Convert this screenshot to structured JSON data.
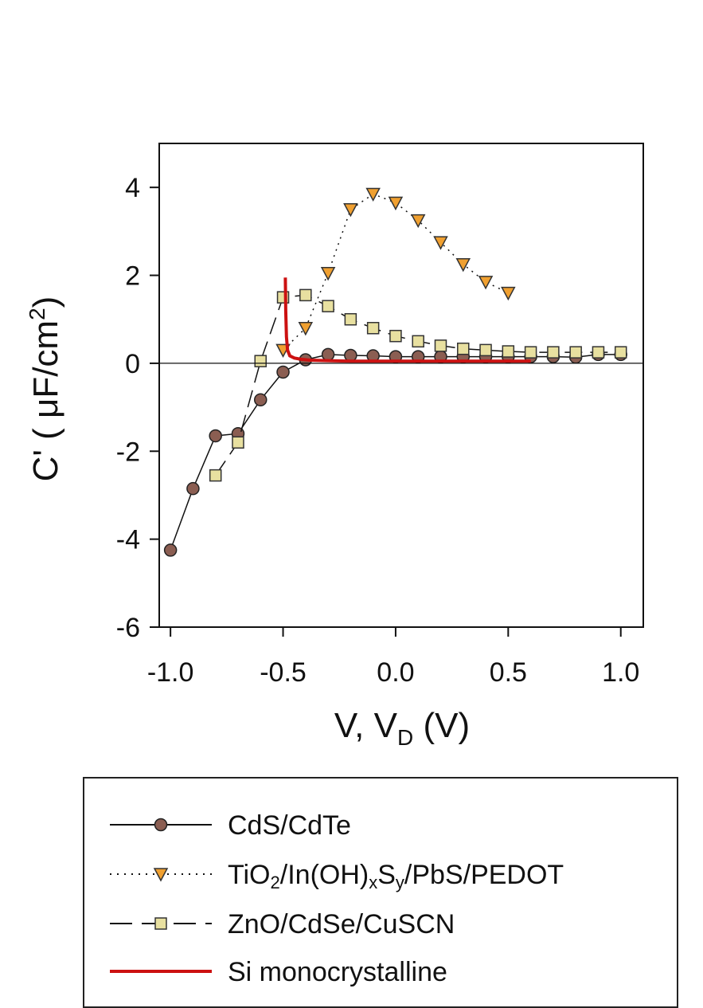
{
  "chart_data": {
    "type": "line",
    "xlabel": "V, V",
    "xlabel_sub": "D",
    "xlabel_unit": " (V)",
    "ylabel": "C' ( μF/cm",
    "ylabel_sup": "2",
    "ylabel_end": ")",
    "xlim": [
      -1.05,
      1.1
    ],
    "ylim": [
      -6,
      5
    ],
    "xticks": [
      -1.0,
      -0.5,
      0.0,
      0.5,
      1.0
    ],
    "xtick_labels": [
      "-1.0",
      "-0.5",
      "0.0",
      "0.5",
      "1.0"
    ],
    "yticks": [
      -6,
      -4,
      -2,
      0,
      2,
      4
    ],
    "ytick_labels": [
      "-6",
      "-4",
      "-2",
      "0",
      "2",
      "4"
    ],
    "zero_line": true,
    "grid": false,
    "legend_position": "below",
    "series": [
      {
        "name": "CdS/CdTe",
        "color": "#8b5e52",
        "marker": "circle",
        "line": "solid",
        "x": [
          -1.0,
          -0.9,
          -0.8,
          -0.7,
          -0.6,
          -0.5,
          -0.4,
          -0.3,
          -0.2,
          -0.1,
          0.0,
          0.1,
          0.2,
          0.3,
          0.4,
          0.5,
          0.6,
          0.7,
          0.8,
          0.9,
          1.0
        ],
        "y": [
          -4.25,
          -2.85,
          -1.65,
          -1.6,
          -0.83,
          -0.2,
          0.08,
          0.2,
          0.18,
          0.17,
          0.15,
          0.15,
          0.15,
          0.15,
          0.15,
          0.15,
          0.15,
          0.15,
          0.14,
          0.2,
          0.2
        ]
      },
      {
        "name": "TiO2/In(OH)xSy/PbS/PEDOT",
        "color": "#f0a030",
        "marker": "triangle-down",
        "line": "dotted",
        "x": [
          -0.5,
          -0.4,
          -0.3,
          -0.2,
          -0.1,
          0.0,
          0.1,
          0.2,
          0.3,
          0.4,
          0.5
        ],
        "y": [
          0.3,
          0.8,
          2.05,
          3.5,
          3.85,
          3.65,
          3.25,
          2.75,
          2.25,
          1.85,
          1.6
        ]
      },
      {
        "name": "ZnO/CdSe/CuSCN",
        "color": "#e8e0a0",
        "marker": "square",
        "line": "dashed",
        "x": [
          -0.8,
          -0.7,
          -0.6,
          -0.5,
          -0.4,
          -0.3,
          -0.2,
          -0.1,
          0.0,
          0.1,
          0.2,
          0.3,
          0.4,
          0.5,
          0.6,
          0.7,
          0.8,
          0.9,
          1.0
        ],
        "y": [
          -2.55,
          -1.8,
          0.05,
          1.5,
          1.55,
          1.3,
          1.0,
          0.8,
          0.62,
          0.5,
          0.4,
          0.33,
          0.3,
          0.27,
          0.25,
          0.25,
          0.25,
          0.25,
          0.25
        ]
      },
      {
        "name": "Si monocrystalline",
        "color": "#cc1111",
        "marker": "none",
        "line": "solid-thick",
        "x": [
          -0.49,
          -0.488,
          -0.485,
          -0.48,
          -0.47,
          -0.45,
          -0.42,
          -0.38,
          -0.3,
          -0.2,
          0.0,
          0.2,
          0.4,
          0.6
        ],
        "y": [
          1.95,
          1.2,
          0.6,
          0.3,
          0.17,
          0.12,
          0.09,
          0.07,
          0.06,
          0.05,
          0.05,
          0.05,
          0.05,
          0.05
        ]
      }
    ]
  },
  "legend": {
    "items": [
      {
        "parts": [
          {
            "t": "CdS/CdTe"
          }
        ]
      },
      {
        "parts": [
          {
            "t": "TiO"
          },
          {
            "sub": "2"
          },
          {
            "t": "/In(OH)"
          },
          {
            "sub": "x"
          },
          {
            "t": "S"
          },
          {
            "sub": "y"
          },
          {
            "t": "/PbS/PEDOT"
          }
        ]
      },
      {
        "parts": [
          {
            "t": "ZnO/CdSe/CuSCN"
          }
        ]
      },
      {
        "parts": [
          {
            "t": "Si monocrystalline"
          }
        ]
      }
    ]
  }
}
